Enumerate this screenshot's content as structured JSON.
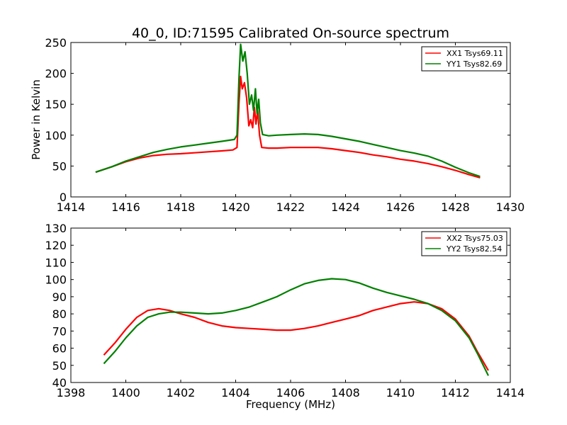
{
  "page": {
    "title": "40_0, ID:71595 Calibrated On-source spectrum"
  },
  "chart_data": [
    {
      "type": "line",
      "title": "40_0, ID:71595 Calibrated On-source spectrum",
      "xlabel": "",
      "ylabel": "Power in Kelvin",
      "xlim": [
        1414,
        1430
      ],
      "ylim": [
        0,
        250
      ],
      "xticks": [
        1414,
        1416,
        1418,
        1420,
        1422,
        1424,
        1426,
        1428,
        1430
      ],
      "yticks": [
        0,
        50,
        100,
        150,
        200,
        250
      ],
      "grid": false,
      "legend_position": "top-right",
      "series": [
        {
          "name": "XX1 Tsys69.11",
          "color": "#ff0000",
          "points": [
            [
              1414.9,
              40
            ],
            [
              1415.5,
              49
            ],
            [
              1416.0,
              57
            ],
            [
              1416.5,
              63
            ],
            [
              1417.0,
              67
            ],
            [
              1417.5,
              69
            ],
            [
              1418.0,
              70
            ],
            [
              1418.5,
              71.5
            ],
            [
              1419.0,
              73
            ],
            [
              1419.5,
              74.5
            ],
            [
              1419.9,
              76
            ],
            [
              1420.05,
              80
            ],
            [
              1420.12,
              150
            ],
            [
              1420.18,
              195
            ],
            [
              1420.24,
              175
            ],
            [
              1420.32,
              185
            ],
            [
              1420.4,
              160
            ],
            [
              1420.48,
              115
            ],
            [
              1420.55,
              125
            ],
            [
              1420.62,
              112
            ],
            [
              1420.68,
              145
            ],
            [
              1420.74,
              118
            ],
            [
              1420.8,
              140
            ],
            [
              1420.87,
              100
            ],
            [
              1420.95,
              80
            ],
            [
              1421.2,
              79
            ],
            [
              1421.5,
              79
            ],
            [
              1422.0,
              80
            ],
            [
              1422.5,
              80
            ],
            [
              1423.0,
              80
            ],
            [
              1423.5,
              78
            ],
            [
              1424.0,
              75
            ],
            [
              1424.5,
              72
            ],
            [
              1425.0,
              68
            ],
            [
              1425.5,
              65
            ],
            [
              1426.0,
              61
            ],
            [
              1426.5,
              58
            ],
            [
              1427.0,
              54
            ],
            [
              1427.5,
              49
            ],
            [
              1428.0,
              43
            ],
            [
              1428.5,
              36
            ],
            [
              1428.9,
              31
            ]
          ]
        },
        {
          "name": "YY1 Tsys82.69",
          "color": "#008000",
          "points": [
            [
              1414.9,
              40
            ],
            [
              1415.5,
              49
            ],
            [
              1416.0,
              58
            ],
            [
              1416.5,
              65
            ],
            [
              1417.0,
              72
            ],
            [
              1417.5,
              77
            ],
            [
              1418.0,
              81
            ],
            [
              1418.5,
              84
            ],
            [
              1419.0,
              87
            ],
            [
              1419.5,
              90
            ],
            [
              1419.95,
              93
            ],
            [
              1420.05,
              100
            ],
            [
              1420.12,
              190
            ],
            [
              1420.18,
              247
            ],
            [
              1420.26,
              220
            ],
            [
              1420.34,
              235
            ],
            [
              1420.42,
              200
            ],
            [
              1420.5,
              150
            ],
            [
              1420.58,
              165
            ],
            [
              1420.65,
              140
            ],
            [
              1420.72,
              175
            ],
            [
              1420.78,
              135
            ],
            [
              1420.84,
              158
            ],
            [
              1420.9,
              120
            ],
            [
              1420.98,
              101
            ],
            [
              1421.2,
              99
            ],
            [
              1421.5,
              100
            ],
            [
              1422.0,
              101
            ],
            [
              1422.5,
              102
            ],
            [
              1423.0,
              101
            ],
            [
              1423.5,
              98
            ],
            [
              1424.0,
              94
            ],
            [
              1424.5,
              90
            ],
            [
              1425.0,
              85
            ],
            [
              1425.5,
              80
            ],
            [
              1426.0,
              75
            ],
            [
              1426.5,
              71
            ],
            [
              1427.0,
              66
            ],
            [
              1427.5,
              58
            ],
            [
              1428.0,
              48
            ],
            [
              1428.5,
              39
            ],
            [
              1428.9,
              33
            ]
          ]
        }
      ]
    },
    {
      "type": "line",
      "title": "",
      "xlabel": "Frequency (MHz)",
      "ylabel": "",
      "xlim": [
        1398,
        1414
      ],
      "ylim": [
        40,
        130
      ],
      "xticks": [
        1398,
        1400,
        1402,
        1404,
        1406,
        1408,
        1410,
        1412,
        1414
      ],
      "yticks": [
        40,
        50,
        60,
        70,
        80,
        90,
        100,
        110,
        120,
        130
      ],
      "grid": false,
      "legend_position": "top-right",
      "series": [
        {
          "name": "XX2 Tsys75.03",
          "color": "#ff0000",
          "points": [
            [
              1399.2,
              56
            ],
            [
              1399.6,
              63
            ],
            [
              1400.0,
              71
            ],
            [
              1400.4,
              78
            ],
            [
              1400.8,
              82
            ],
            [
              1401.2,
              83
            ],
            [
              1401.6,
              82
            ],
            [
              1402.0,
              80
            ],
            [
              1402.5,
              78
            ],
            [
              1403.0,
              75
            ],
            [
              1403.5,
              73
            ],
            [
              1404.0,
              72
            ],
            [
              1404.5,
              71.5
            ],
            [
              1405.0,
              71
            ],
            [
              1405.5,
              70.5
            ],
            [
              1406.0,
              70.5
            ],
            [
              1406.5,
              71.5
            ],
            [
              1407.0,
              73
            ],
            [
              1407.5,
              75
            ],
            [
              1408.0,
              77
            ],
            [
              1408.5,
              79
            ],
            [
              1409.0,
              82
            ],
            [
              1409.5,
              84
            ],
            [
              1410.0,
              86
            ],
            [
              1410.5,
              87
            ],
            [
              1411.0,
              86
            ],
            [
              1411.5,
              83
            ],
            [
              1412.0,
              77
            ],
            [
              1412.5,
              67
            ],
            [
              1412.8,
              58
            ],
            [
              1413.2,
              47
            ]
          ]
        },
        {
          "name": "YY2 Tsys82.54",
          "color": "#008000",
          "points": [
            [
              1399.2,
              51
            ],
            [
              1399.6,
              58
            ],
            [
              1400.0,
              66
            ],
            [
              1400.4,
              73
            ],
            [
              1400.8,
              78
            ],
            [
              1401.2,
              80
            ],
            [
              1401.6,
              81
            ],
            [
              1402.0,
              81
            ],
            [
              1402.5,
              80.5
            ],
            [
              1403.0,
              80
            ],
            [
              1403.5,
              80.5
            ],
            [
              1404.0,
              82
            ],
            [
              1404.5,
              84
            ],
            [
              1405.0,
              87
            ],
            [
              1405.5,
              90
            ],
            [
              1406.0,
              94
            ],
            [
              1406.5,
              97.5
            ],
            [
              1407.0,
              99.5
            ],
            [
              1407.5,
              100.5
            ],
            [
              1408.0,
              100
            ],
            [
              1408.5,
              98
            ],
            [
              1409.0,
              95
            ],
            [
              1409.5,
              92.5
            ],
            [
              1410.0,
              90.5
            ],
            [
              1410.5,
              88.5
            ],
            [
              1411.0,
              86
            ],
            [
              1411.5,
              82
            ],
            [
              1412.0,
              76
            ],
            [
              1412.5,
              66
            ],
            [
              1412.8,
              57
            ],
            [
              1413.2,
              44
            ]
          ]
        }
      ]
    }
  ]
}
